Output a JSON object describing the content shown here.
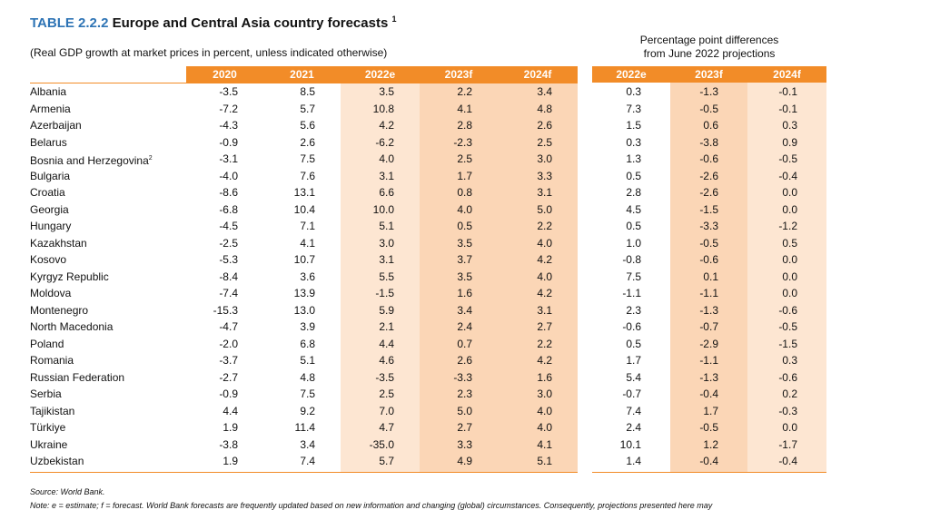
{
  "header": {
    "table_label": "TABLE 2.2.2",
    "title": "Europe and Central Asia country forecasts",
    "title_note": "1",
    "subtitle": "(Real GDP growth at market prices in percent, unless indicated otherwise)",
    "diff_heading_1": "Percentage point differences",
    "diff_heading_2": "from June 2022 projections"
  },
  "table": {
    "columns": [
      "2020",
      "2021",
      "2022e",
      "2023f",
      "2024f"
    ],
    "diff_columns": [
      "2022e",
      "2023f",
      "2024f"
    ],
    "rows": [
      {
        "country": "Albania",
        "values": [
          "-3.5",
          "8.5",
          "3.5",
          "2.2",
          "3.4"
        ],
        "diffs": [
          "0.3",
          "-1.3",
          "-0.1"
        ]
      },
      {
        "country": "Armenia",
        "values": [
          "-7.2",
          "5.7",
          "10.8",
          "4.1",
          "4.8"
        ],
        "diffs": [
          "7.3",
          "-0.5",
          "-0.1"
        ]
      },
      {
        "country": "Azerbaijan",
        "values": [
          "-4.3",
          "5.6",
          "4.2",
          "2.8",
          "2.6"
        ],
        "diffs": [
          "1.5",
          "0.6",
          "0.3"
        ]
      },
      {
        "country": "Belarus",
        "values": [
          "-0.9",
          "2.6",
          "-6.2",
          "-2.3",
          "2.5"
        ],
        "diffs": [
          "0.3",
          "-3.8",
          "0.9"
        ]
      },
      {
        "country": "Bosnia and Herzegovina",
        "sup": "2",
        "values": [
          "-3.1",
          "7.5",
          "4.0",
          "2.5",
          "3.0"
        ],
        "diffs": [
          "1.3",
          "-0.6",
          "-0.5"
        ]
      },
      {
        "country": "Bulgaria",
        "values": [
          "-4.0",
          "7.6",
          "3.1",
          "1.7",
          "3.3"
        ],
        "diffs": [
          "0.5",
          "-2.6",
          "-0.4"
        ]
      },
      {
        "country": "Croatia",
        "values": [
          "-8.6",
          "13.1",
          "6.6",
          "0.8",
          "3.1"
        ],
        "diffs": [
          "2.8",
          "-2.6",
          "0.0"
        ]
      },
      {
        "country": "Georgia",
        "values": [
          "-6.8",
          "10.4",
          "10.0",
          "4.0",
          "5.0"
        ],
        "diffs": [
          "4.5",
          "-1.5",
          "0.0"
        ]
      },
      {
        "country": "Hungary",
        "values": [
          "-4.5",
          "7.1",
          "5.1",
          "0.5",
          "2.2"
        ],
        "diffs": [
          "0.5",
          "-3.3",
          "-1.2"
        ]
      },
      {
        "country": "Kazakhstan",
        "values": [
          "-2.5",
          "4.1",
          "3.0",
          "3.5",
          "4.0"
        ],
        "diffs": [
          "1.0",
          "-0.5",
          "0.5"
        ]
      },
      {
        "country": "Kosovo",
        "values": [
          "-5.3",
          "10.7",
          "3.1",
          "3.7",
          "4.2"
        ],
        "diffs": [
          "-0.8",
          "-0.6",
          "0.0"
        ]
      },
      {
        "country": "Kyrgyz Republic",
        "values": [
          "-8.4",
          "3.6",
          "5.5",
          "3.5",
          "4.0"
        ],
        "diffs": [
          "7.5",
          "0.1",
          "0.0"
        ]
      },
      {
        "country": "Moldova",
        "values": [
          "-7.4",
          "13.9",
          "-1.5",
          "1.6",
          "4.2"
        ],
        "diffs": [
          "-1.1",
          "-1.1",
          "0.0"
        ]
      },
      {
        "country": "Montenegro",
        "values": [
          "-15.3",
          "13.0",
          "5.9",
          "3.4",
          "3.1"
        ],
        "diffs": [
          "2.3",
          "-1.3",
          "-0.6"
        ]
      },
      {
        "country": "North Macedonia",
        "values": [
          "-4.7",
          "3.9",
          "2.1",
          "2.4",
          "2.7"
        ],
        "diffs": [
          "-0.6",
          "-0.7",
          "-0.5"
        ]
      },
      {
        "country": "Poland",
        "values": [
          "-2.0",
          "6.8",
          "4.4",
          "0.7",
          "2.2"
        ],
        "diffs": [
          "0.5",
          "-2.9",
          "-1.5"
        ]
      },
      {
        "country": "Romania",
        "values": [
          "-3.7",
          "5.1",
          "4.6",
          "2.6",
          "4.2"
        ],
        "diffs": [
          "1.7",
          "-1.1",
          "0.3"
        ]
      },
      {
        "country": "Russian Federation",
        "values": [
          "-2.7",
          "4.8",
          "-3.5",
          "-3.3",
          "1.6"
        ],
        "diffs": [
          "5.4",
          "-1.3",
          "-0.6"
        ]
      },
      {
        "country": "Serbia",
        "values": [
          "-0.9",
          "7.5",
          "2.5",
          "2.3",
          "3.0"
        ],
        "diffs": [
          "-0.7",
          "-0.4",
          "0.2"
        ]
      },
      {
        "country": "Tajikistan",
        "values": [
          "4.4",
          "9.2",
          "7.0",
          "5.0",
          "4.0"
        ],
        "diffs": [
          "7.4",
          "1.7",
          "-0.3"
        ]
      },
      {
        "country": "Türkiye",
        "values": [
          "1.9",
          "11.4",
          "4.7",
          "2.7",
          "4.0"
        ],
        "diffs": [
          "2.4",
          "-0.5",
          "0.0"
        ]
      },
      {
        "country": "Ukraine",
        "values": [
          "-3.8",
          "3.4",
          "-35.0",
          "3.3",
          "4.1"
        ],
        "diffs": [
          "10.1",
          "1.2",
          "-1.7"
        ]
      },
      {
        "country": "Uzbekistan",
        "values": [
          "1.9",
          "7.4",
          "5.7",
          "4.9",
          "5.1"
        ],
        "diffs": [
          "1.4",
          "-0.4",
          "-0.4"
        ]
      }
    ]
  },
  "footer": {
    "source": "Source: World Bank.",
    "note": "Note: e = estimate; f = forecast. World Bank forecasts are frequently updated based on new information and changing (global) circumstances. Consequently, projections presented here may"
  }
}
